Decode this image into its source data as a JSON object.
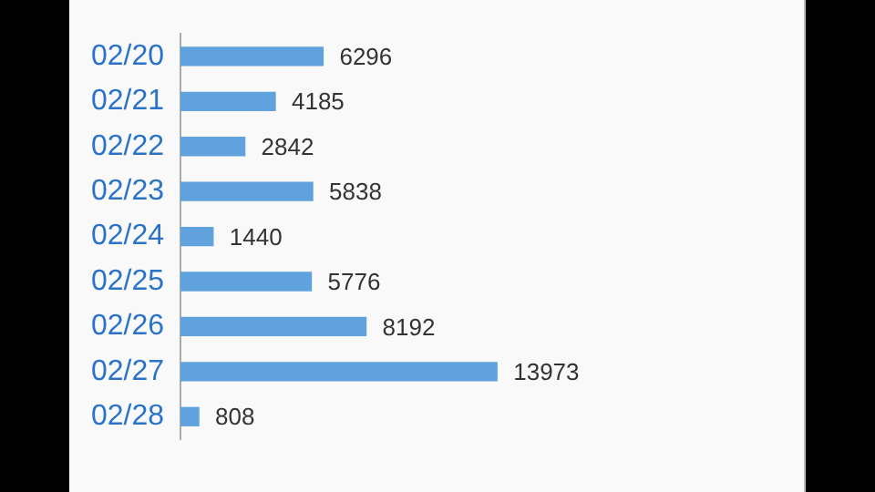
{
  "chart_data": {
    "type": "bar",
    "orientation": "horizontal",
    "categories": [
      "02/20",
      "02/21",
      "02/22",
      "02/23",
      "02/24",
      "02/25",
      "02/26",
      "02/27",
      "02/28"
    ],
    "values": [
      6296,
      4185,
      2842,
      5838,
      1440,
      5776,
      8192,
      13973,
      808
    ],
    "color": "#5fa2dd",
    "data_labels": true,
    "grid": false,
    "legend": false
  }
}
